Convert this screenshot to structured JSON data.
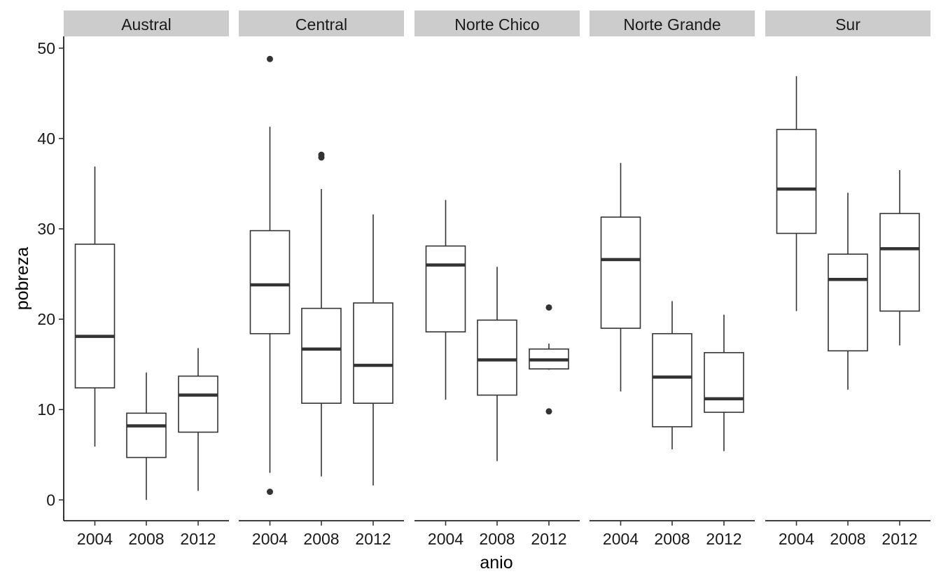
{
  "chart_data": {
    "type": "boxplot",
    "xlabel": "anio",
    "ylabel": "pobreza",
    "ylim": [
      -2.3,
      51.3
    ],
    "yticks": [
      0,
      10,
      20,
      30,
      40,
      50
    ],
    "categories": [
      "2004",
      "2008",
      "2012"
    ],
    "facets": [
      {
        "name": "Austral",
        "boxes": [
          {
            "x": "2004",
            "lower": 5.9,
            "q1": 12.4,
            "median": 18.1,
            "q3": 28.3,
            "upper": 36.9,
            "outliers": []
          },
          {
            "x": "2008",
            "lower": 0.0,
            "q1": 4.7,
            "median": 8.2,
            "q3": 9.6,
            "upper": 14.1,
            "outliers": []
          },
          {
            "x": "2012",
            "lower": 1.0,
            "q1": 7.5,
            "median": 11.6,
            "q3": 13.7,
            "upper": 16.8,
            "outliers": []
          }
        ]
      },
      {
        "name": "Central",
        "boxes": [
          {
            "x": "2004",
            "lower": 3.0,
            "q1": 18.4,
            "median": 23.8,
            "q3": 29.8,
            "upper": 41.3,
            "outliers": [
              0.9,
              48.8
            ]
          },
          {
            "x": "2008",
            "lower": 2.6,
            "q1": 10.7,
            "median": 16.7,
            "q3": 21.2,
            "upper": 34.4,
            "outliers": [
              37.9,
              38.2
            ]
          },
          {
            "x": "2012",
            "lower": 1.6,
            "q1": 10.7,
            "median": 14.9,
            "q3": 21.8,
            "upper": 31.6,
            "outliers": []
          }
        ]
      },
      {
        "name": "Norte Chico",
        "boxes": [
          {
            "x": "2004",
            "lower": 11.1,
            "q1": 18.6,
            "median": 26.0,
            "q3": 28.1,
            "upper": 33.2,
            "outliers": []
          },
          {
            "x": "2008",
            "lower": 4.3,
            "q1": 11.6,
            "median": 15.5,
            "q3": 19.9,
            "upper": 25.8,
            "outliers": []
          },
          {
            "x": "2012",
            "lower": 14.4,
            "q1": 14.5,
            "median": 15.5,
            "q3": 16.7,
            "upper": 17.3,
            "outliers": [
              9.8,
              21.3
            ]
          }
        ]
      },
      {
        "name": "Norte Grande",
        "boxes": [
          {
            "x": "2004",
            "lower": 12.0,
            "q1": 19.0,
            "median": 26.6,
            "q3": 31.3,
            "upper": 37.3,
            "outliers": []
          },
          {
            "x": "2008",
            "lower": 5.6,
            "q1": 8.1,
            "median": 13.6,
            "q3": 18.4,
            "upper": 22.0,
            "outliers": []
          },
          {
            "x": "2012",
            "lower": 5.4,
            "q1": 9.7,
            "median": 11.2,
            "q3": 16.3,
            "upper": 20.5,
            "outliers": []
          }
        ]
      },
      {
        "name": "Sur",
        "boxes": [
          {
            "x": "2004",
            "lower": 20.9,
            "q1": 29.5,
            "median": 34.4,
            "q3": 41.0,
            "upper": 46.9,
            "outliers": []
          },
          {
            "x": "2008",
            "lower": 12.2,
            "q1": 16.5,
            "median": 24.4,
            "q3": 27.2,
            "upper": 34.0,
            "outliers": []
          },
          {
            "x": "2012",
            "lower": 17.1,
            "q1": 20.9,
            "median": 27.8,
            "q3": 31.7,
            "upper": 36.5,
            "outliers": []
          }
        ]
      }
    ]
  }
}
